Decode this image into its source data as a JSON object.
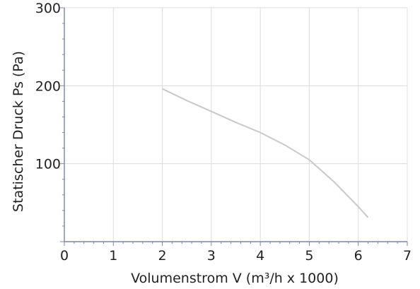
{
  "chart_data": {
    "type": "line",
    "xlabel": "Volumenstrom V (m³/h x 1000)",
    "ylabel": "Statischer Druck Ps (Pa)",
    "xlim": [
      0,
      7
    ],
    "ylim": [
      0,
      300
    ],
    "x_ticks": [
      "0",
      "1",
      "2",
      "3",
      "4",
      "5",
      "6",
      "7"
    ],
    "y_ticks": [
      "100",
      "200",
      "300"
    ],
    "grid": true,
    "series": [
      {
        "color": "#c9c9c9",
        "x": [
          2.0,
          2.5,
          3.0,
          3.5,
          4.0,
          4.5,
          5.0,
          5.5,
          6.0,
          6.2
        ],
        "y": [
          196,
          181,
          167,
          153,
          140,
          124,
          105,
          77,
          45,
          31
        ]
      }
    ]
  }
}
